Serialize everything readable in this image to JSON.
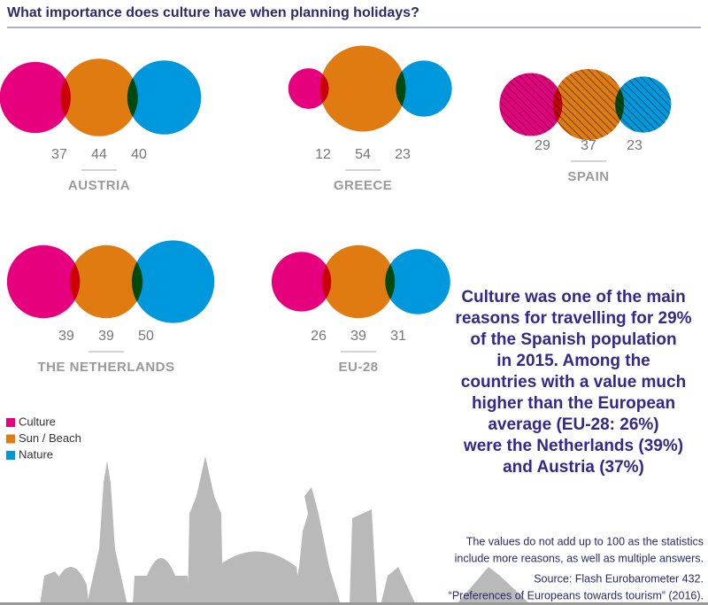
{
  "chart_data": {
    "type": "venn",
    "title": "What importance does culture have when planning holidays?",
    "categories": [
      "AUSTRIA",
      "GREECE",
      "SPAIN",
      "THE NETHERLANDS",
      "EU-28"
    ],
    "highlight": "SPAIN",
    "highlight_color": "#0095d9",
    "series": [
      {
        "name": "Culture",
        "color": "#e6007e",
        "values": [
          37,
          12,
          29,
          39,
          26
        ]
      },
      {
        "name": "Sun / Beach",
        "color": "#e07b12",
        "values": [
          44,
          54,
          37,
          39,
          39
        ]
      },
      {
        "name": "Nature",
        "color": "#0098dc",
        "values": [
          40,
          23,
          23,
          50,
          31
        ]
      }
    ],
    "annotation": [
      "Culture was one of the main",
      "reasons for travelling for 29%",
      "of the Spanish population",
      "in 2015. Among the",
      "countries with a value much",
      "higher than the European",
      "average (EU-28: 26%)",
      "were the Netherlands (39%)",
      "and Austria (37%)"
    ],
    "note": [
      "The values do not add up to 100 as the statistics",
      "include more reasons, as well as multiple answers."
    ],
    "source": [
      "Source: Flash Eurobarometer 432.",
      "“Preferences of Europeans towards tourism” (2016)."
    ]
  }
}
